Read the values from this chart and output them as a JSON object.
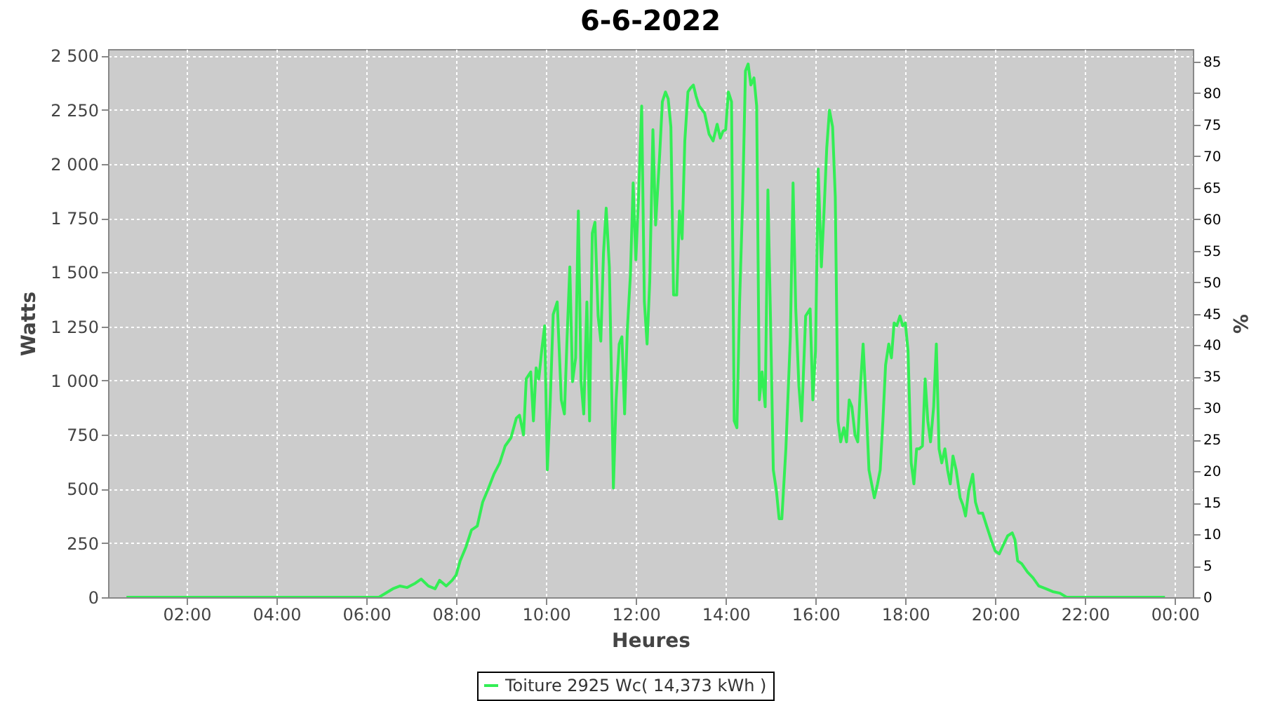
{
  "chart_data": {
    "type": "line",
    "title": "6-6-2022",
    "xlabel": "Heures",
    "ylabel": "Watts",
    "y2label": "%",
    "xlim": [
      0.25,
      24.4
    ],
    "xticks": [
      {
        "value": 2,
        "label": "02:00"
      },
      {
        "value": 4,
        "label": "04:00"
      },
      {
        "value": 6,
        "label": "06:00"
      },
      {
        "value": 8,
        "label": "08:00"
      },
      {
        "value": 10,
        "label": "10:00"
      },
      {
        "value": 12,
        "label": "12:00"
      },
      {
        "value": 14,
        "label": "14:00"
      },
      {
        "value": 16,
        "label": "16:00"
      },
      {
        "value": 18,
        "label": "18:00"
      },
      {
        "value": 20,
        "label": "20:00"
      },
      {
        "value": 22,
        "label": "22:00"
      },
      {
        "value": 24,
        "label": "00:00"
      }
    ],
    "ylim": [
      0,
      2530
    ],
    "yticks": [
      0,
      250,
      500,
      750,
      {
        "value": 1000,
        "label": "1 000"
      },
      {
        "value": 1250,
        "label": "1 250"
      },
      {
        "value": 1500,
        "label": "1 500"
      },
      {
        "value": 1750,
        "label": "1 750"
      },
      {
        "value": 2000,
        "label": "2 000"
      },
      {
        "value": 2250,
        "label": "2 250"
      },
      {
        "value": 2500,
        "label": "2 500"
      }
    ],
    "y2lim": [
      0,
      87
    ],
    "y2ticks": [
      0,
      5,
      10,
      15,
      20,
      25,
      30,
      35,
      40,
      45,
      50,
      55,
      60,
      65,
      70,
      75,
      80,
      85
    ],
    "grid": true,
    "legend": "bottom",
    "line_style": "solid",
    "series": [
      {
        "name": "Toiture 2925 Wc( 14,373 kWh )",
        "color": "#33ee55",
        "x": [
          0.66,
          6.28,
          6.59,
          6.75,
          6.91,
          7.09,
          7.22,
          7.38,
          7.53,
          7.63,
          7.78,
          7.91,
          8.0,
          8.09,
          8.22,
          8.34,
          8.47,
          8.59,
          8.72,
          8.84,
          8.97,
          9.09,
          9.22,
          9.34,
          9.41,
          9.5,
          9.56,
          9.66,
          9.72,
          9.78,
          9.84,
          9.91,
          9.97,
          10.03,
          10.09,
          10.16,
          10.25,
          10.34,
          10.41,
          10.47,
          10.53,
          10.59,
          10.66,
          10.72,
          10.78,
          10.84,
          10.91,
          10.97,
          11.03,
          11.09,
          11.16,
          11.22,
          11.28,
          11.34,
          11.41,
          11.47,
          11.5,
          11.56,
          11.63,
          11.69,
          11.75,
          11.81,
          11.88,
          11.94,
          12.0,
          12.06,
          12.13,
          12.19,
          12.25,
          12.31,
          12.38,
          12.44,
          12.53,
          12.59,
          12.66,
          12.72,
          12.78,
          12.84,
          12.91,
          12.97,
          13.03,
          13.09,
          13.16,
          13.22,
          13.28,
          13.34,
          13.41,
          13.53,
          13.63,
          13.72,
          13.81,
          13.88,
          13.94,
          14.0,
          14.06,
          14.13,
          14.19,
          14.25,
          14.31,
          14.38,
          14.44,
          14.5,
          14.56,
          14.63,
          14.69,
          14.75,
          14.81,
          14.88,
          14.94,
          15.0,
          15.06,
          15.13,
          15.19,
          15.25,
          15.34,
          15.44,
          15.5,
          15.56,
          15.63,
          15.69,
          15.78,
          15.88,
          15.94,
          16.0,
          16.06,
          16.13,
          16.19,
          16.25,
          16.31,
          16.38,
          16.44,
          16.5,
          16.56,
          16.63,
          16.69,
          16.75,
          16.81,
          16.88,
          16.94,
          17.0,
          17.06,
          17.13,
          17.19,
          17.25,
          17.31,
          17.38,
          17.44,
          17.5,
          17.56,
          17.63,
          17.69,
          17.75,
          17.81,
          17.88,
          17.94,
          18.0,
          18.06,
          18.13,
          18.19,
          18.25,
          18.31,
          18.38,
          18.44,
          18.5,
          18.56,
          18.63,
          18.69,
          18.75,
          18.81,
          18.88,
          18.94,
          19.0,
          19.06,
          19.13,
          19.22,
          19.28,
          19.34,
          19.41,
          19.5,
          19.56,
          19.63,
          19.72,
          19.81,
          19.91,
          20.0,
          20.09,
          20.19,
          20.28,
          20.38,
          20.44,
          20.5,
          20.59,
          20.72,
          20.84,
          20.97,
          21.13,
          21.28,
          21.44,
          21.59,
          23.78
        ],
        "values": [
          0,
          0,
          39,
          52,
          45,
          65,
          84,
          52,
          39,
          78,
          52,
          78,
          103,
          168,
          233,
          310,
          329,
          439,
          504,
          568,
          620,
          698,
          736,
          827,
          840,
          749,
          1008,
          1040,
          814,
          1059,
          1008,
          1150,
          1253,
          588,
          879,
          1305,
          1363,
          911,
          846,
          1202,
          1525,
          995,
          1105,
          1783,
          995,
          846,
          1363,
          814,
          1680,
          1731,
          1298,
          1182,
          1589,
          1796,
          1525,
          879,
          504,
          911,
          1169,
          1202,
          846,
          1234,
          1492,
          1912,
          1557,
          1848,
          2267,
          1363,
          1169,
          1460,
          2158,
          1718,
          2041,
          2287,
          2332,
          2300,
          2171,
          1395,
          1395,
          1783,
          1654,
          2106,
          2332,
          2351,
          2364,
          2313,
          2267,
          2235,
          2138,
          2106,
          2183,
          2119,
          2151,
          2158,
          2332,
          2287,
          814,
          782,
          1363,
          1848,
          2429,
          2461,
          2364,
          2397,
          2267,
          911,
          1040,
          879,
          1880,
          1266,
          588,
          491,
          362,
          362,
          685,
          1202,
          1912,
          1331,
          975,
          814,
          1298,
          1331,
          911,
          1137,
          1977,
          1525,
          1783,
          2074,
          2248,
          2171,
          1848,
          814,
          717,
          782,
          717,
          911,
          879,
          749,
          717,
          975,
          1169,
          879,
          588,
          523,
          459,
          523,
          588,
          814,
          1072,
          1169,
          1105,
          1266,
          1253,
          1298,
          1253,
          1266,
          1137,
          620,
          523,
          685,
          685,
          698,
          1008,
          814,
          717,
          879,
          1169,
          685,
          620,
          685,
          588,
          523,
          652,
          588,
          459,
          426,
          375,
          491,
          568,
          439,
          388,
          388,
          329,
          265,
          213,
          200,
          245,
          284,
          297,
          265,
          168,
          155,
          116,
          90,
          52,
          39,
          26,
          19,
          0,
          0
        ]
      }
    ]
  }
}
